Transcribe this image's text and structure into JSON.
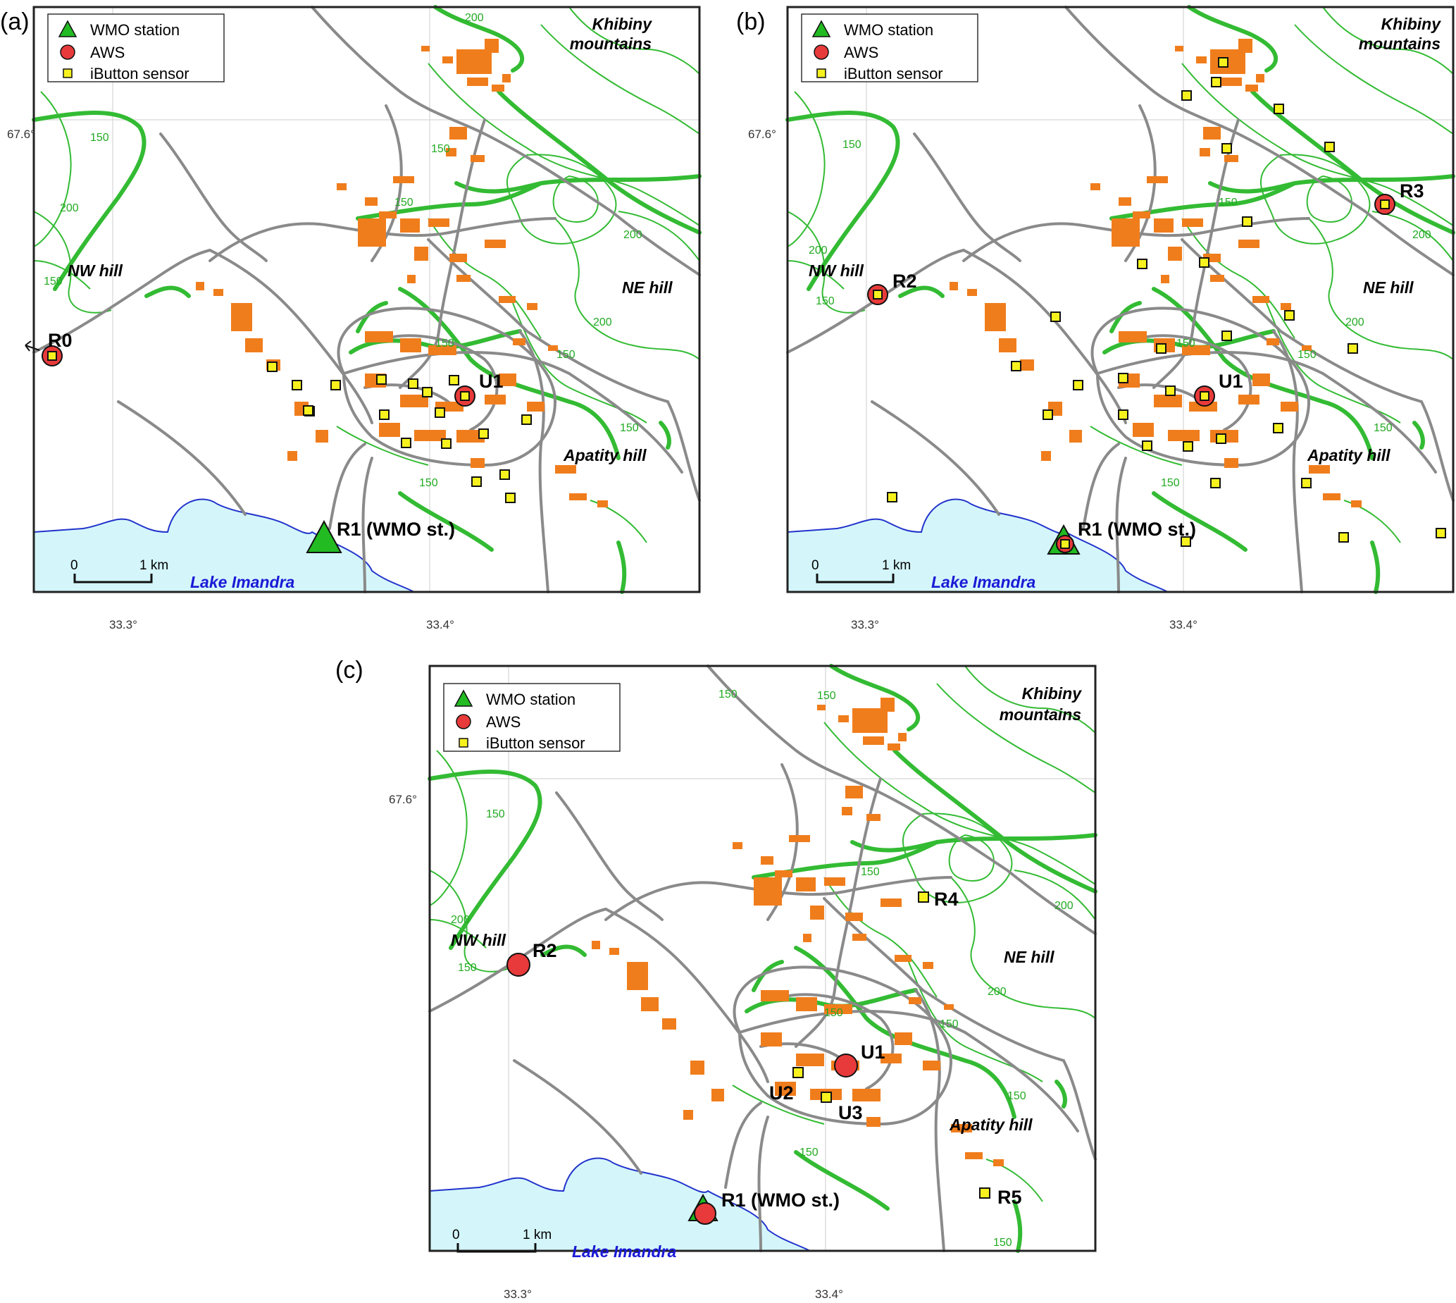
{
  "legend": {
    "wmo": "WMO station",
    "aws": "AWS",
    "ibutton": "iButton sensor"
  },
  "colors": {
    "wmo_marker": "#22bb22",
    "aws_marker": "#e83a3a",
    "ibutton_marker": "#f7f21e",
    "contour": "#33bb33",
    "buildings": "#f07d1c",
    "roads": "#8a8a8a",
    "lake": "#d4f6fa",
    "lake_shore": "#2233cc"
  },
  "coords": {
    "lat": "67.6°",
    "lon_a": "33.3°",
    "lon_b": "33.4°"
  },
  "places": {
    "khibiny_1": "Khibiny",
    "khibiny_2": "mountains",
    "nw_hill": "NW hill",
    "ne_hill": "NE hill",
    "apatity_hill": "Apatity hill",
    "lake": "Lake Imandra"
  },
  "scale": {
    "zero": "0",
    "one": "1 km"
  },
  "contours": {
    "c150": "150",
    "c200": "200"
  },
  "panels": [
    {
      "label": "(a)",
      "stations": {
        "R0": "R0",
        "U1": "U1",
        "R1": "R1 (WMO st.)"
      }
    },
    {
      "label": "(b)",
      "stations": {
        "R2": "R2",
        "R3": "R3",
        "U1": "U1",
        "R1": "R1 (WMO st.)"
      }
    },
    {
      "label": "(c)",
      "stations": {
        "R2": "R2",
        "R4": "R4",
        "U1": "U1",
        "U2": "U2",
        "U3": "U3",
        "R5": "R5",
        "R1": "R1 (WMO st.)"
      }
    }
  ]
}
